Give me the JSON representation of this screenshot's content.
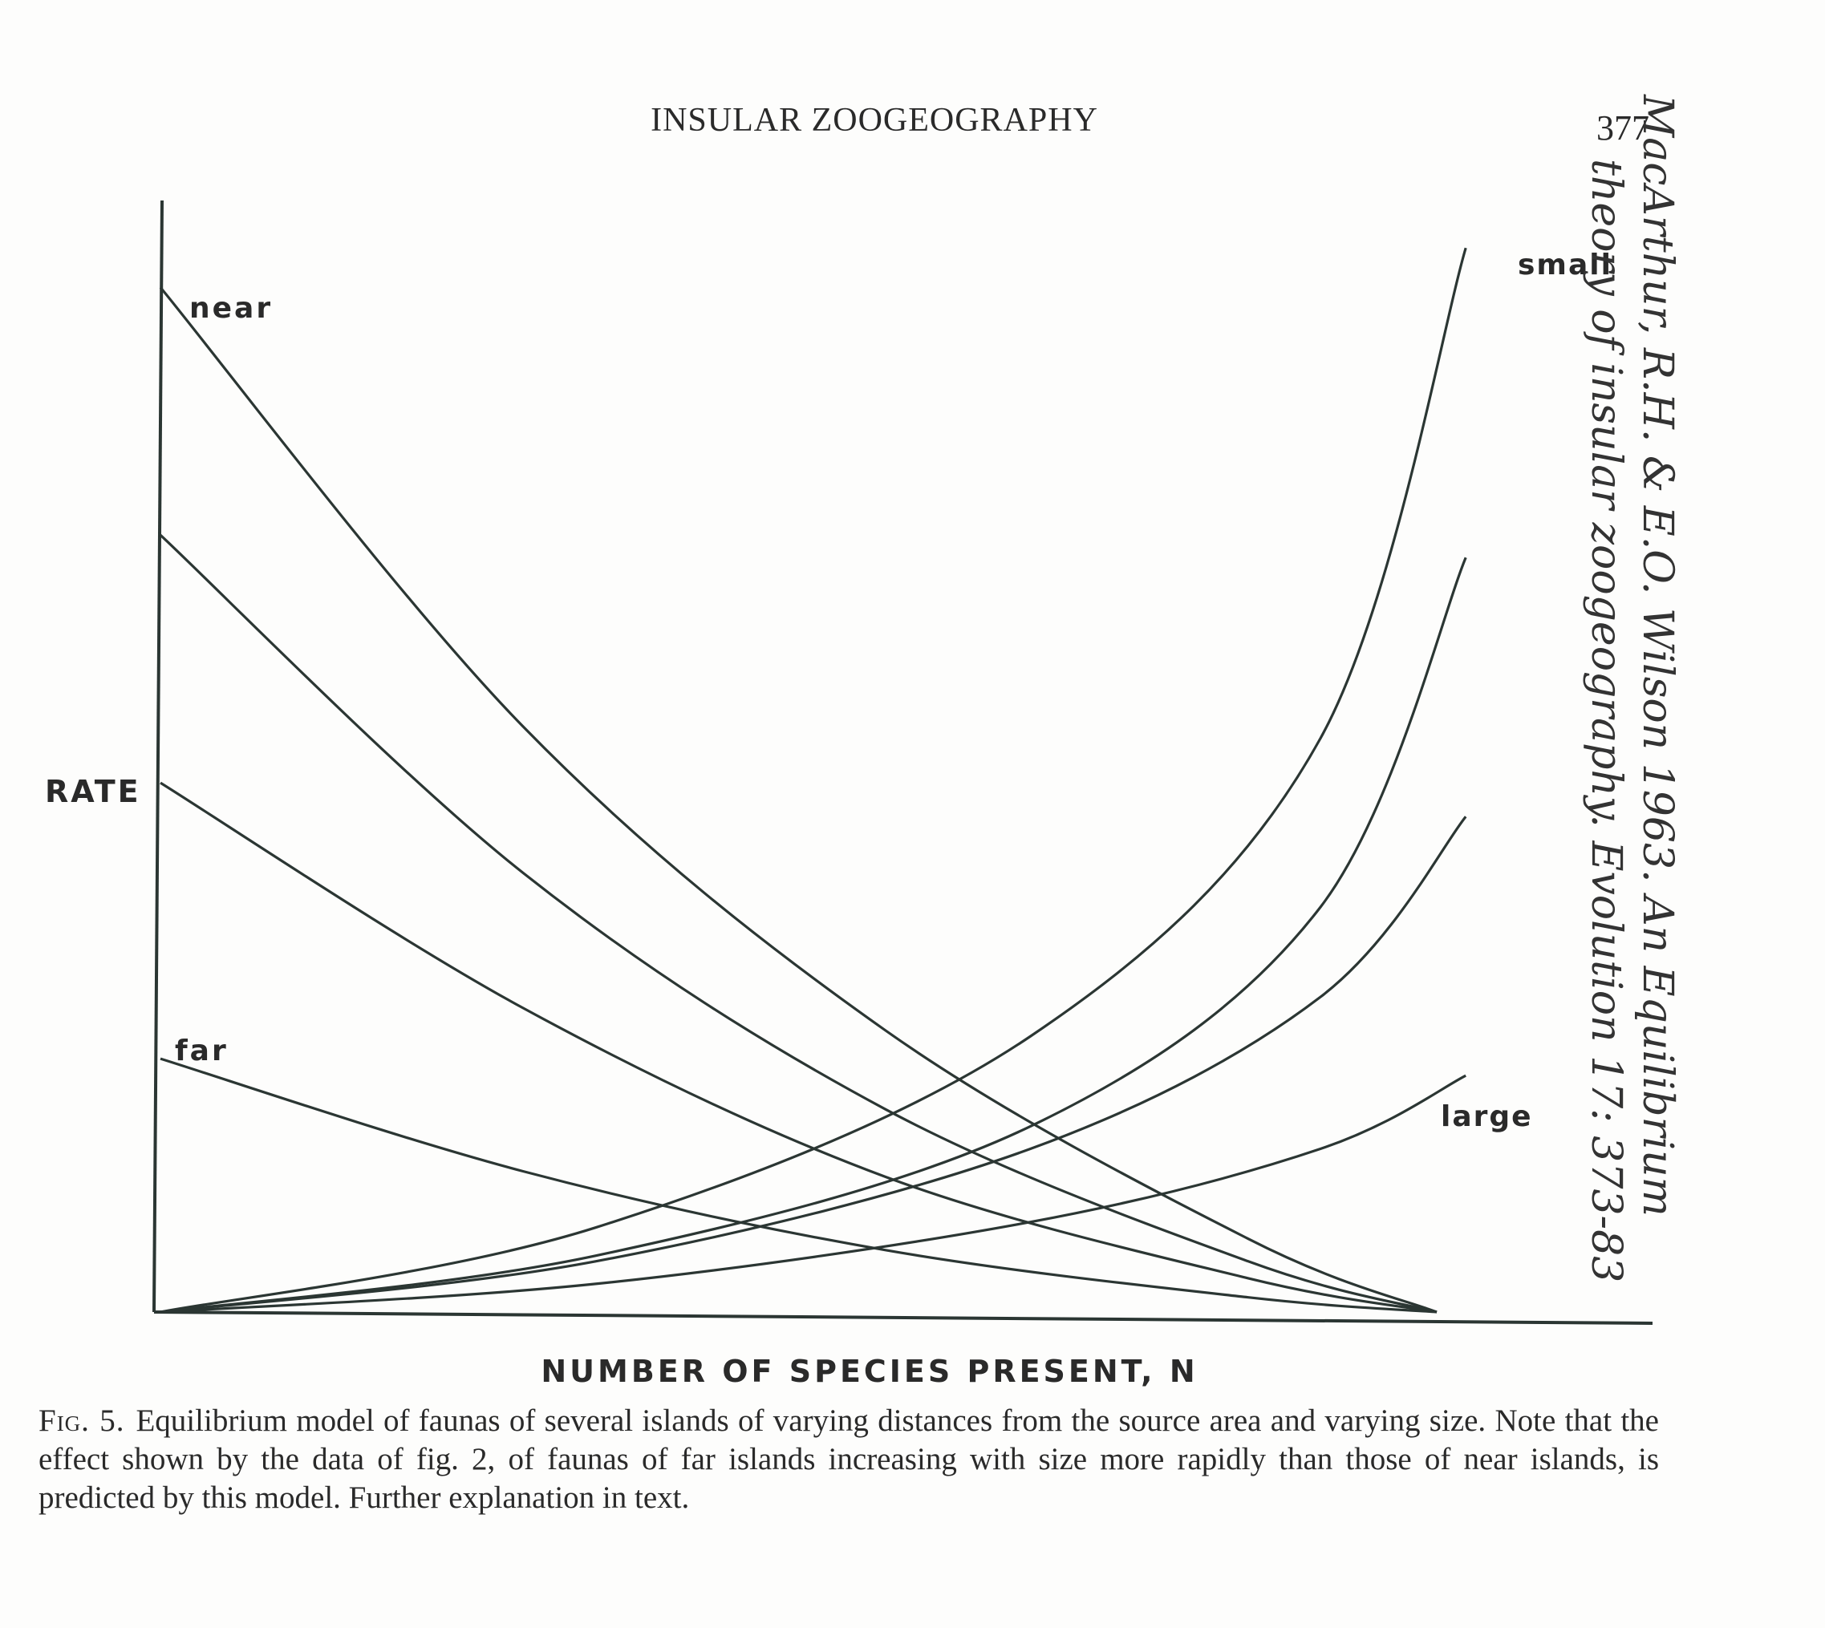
{
  "page": {
    "running_head": "INSULAR ZOOGEOGRAPHY",
    "page_number": "377"
  },
  "chart_data": {
    "type": "line",
    "title": "",
    "xlabel": "NUMBER OF SPECIES PRESENT, N",
    "ylabel": "RATE",
    "xlim": [
      0,
      10
    ],
    "ylim": [
      0,
      10
    ],
    "ticks": "none",
    "grid": false,
    "curve_labels": {
      "near": "near",
      "far": "far",
      "small": "small",
      "large": "large"
    },
    "immigration_curves": [
      {
        "label": "near",
        "x": [
          0,
          2.5,
          5,
          7.5,
          8.8
        ],
        "y": [
          9.1,
          5.2,
          2.5,
          0.65,
          0
        ]
      },
      {
        "label": "",
        "x": [
          0,
          2.5,
          5,
          7.5,
          8.8
        ],
        "y": [
          6.9,
          3.9,
          1.8,
          0.45,
          0
        ]
      },
      {
        "label": "",
        "x": [
          0,
          2.5,
          5,
          7.5,
          8.8
        ],
        "y": [
          4.7,
          2.7,
          1.2,
          0.3,
          0
        ]
      },
      {
        "label": "far",
        "x": [
          0,
          2.5,
          5,
          7.5,
          8.8
        ],
        "y": [
          2.25,
          1.25,
          0.55,
          0.13,
          0
        ]
      }
    ],
    "extinction_curves": [
      {
        "label": "small",
        "x": [
          0,
          3,
          6,
          8,
          9
        ],
        "y": [
          0,
          0.75,
          2.45,
          5.1,
          9.45
        ]
      },
      {
        "label": "",
        "x": [
          0,
          3,
          6,
          8,
          9
        ],
        "y": [
          0,
          0.5,
          1.65,
          3.6,
          6.7
        ]
      },
      {
        "label": "",
        "x": [
          0,
          3,
          6,
          8,
          9
        ],
        "y": [
          0,
          0.45,
          1.45,
          2.8,
          4.4
        ]
      },
      {
        "label": "large",
        "x": [
          0,
          3,
          6,
          8,
          9
        ],
        "y": [
          0,
          0.25,
          0.8,
          1.45,
          2.1
        ]
      }
    ]
  },
  "caption": {
    "label": "Fig. 5.",
    "text": "Equilibrium model of faunas of several islands of varying distances from the source area and varying size. Note that the effect shown by the data of fig. 2, of faunas of far islands increasing with size more rapidly than those of near islands, is predicted by this model. Further explanation in text."
  },
  "handwritten_note": {
    "line1": "MacArthur, R.H. & E.O. Wilson 1963. An Equilibrium",
    "line2": "theory of insular zoogeography. Evolution 17: 373-83"
  }
}
